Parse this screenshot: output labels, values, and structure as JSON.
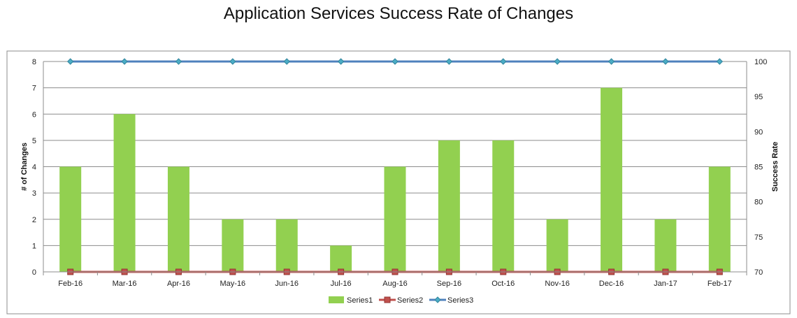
{
  "chart_data": {
    "type": "bar",
    "title": "Application Services Success Rate of Changes",
    "categories": [
      "Feb-16",
      "Mar-16",
      "Apr-16",
      "May-16",
      "Jun-16",
      "Jul-16",
      "Aug-16",
      "Sep-16",
      "Oct-16",
      "Nov-16",
      "Dec-16",
      "Jan-17",
      "Feb-17"
    ],
    "series": [
      {
        "name": "Series1",
        "type": "bar",
        "axis": "left",
        "color": "#92d050",
        "values": [
          4,
          6,
          4,
          2,
          2,
          1,
          4,
          5,
          5,
          2,
          7,
          2,
          4
        ]
      },
      {
        "name": "Series2",
        "type": "line",
        "axis": "left",
        "color": "#c0504d",
        "values": [
          0,
          0,
          0,
          0,
          0,
          0,
          0,
          0,
          0,
          0,
          0,
          0,
          0
        ]
      },
      {
        "name": "Series3",
        "type": "line",
        "axis": "right",
        "color": "#4f81bd",
        "values": [
          100,
          100,
          100,
          100,
          100,
          100,
          100,
          100,
          100,
          100,
          100,
          100,
          100
        ]
      }
    ],
    "ylabel": "# of Changes",
    "ylim": [
      0,
      8
    ],
    "yticks": [
      "0",
      "1",
      "2",
      "3",
      "4",
      "5",
      "6",
      "7",
      "8"
    ],
    "y2label": "Success Rate",
    "y2lim": [
      70,
      100
    ],
    "y2ticks": [
      "70",
      "75",
      "80",
      "85",
      "90",
      "95",
      "100"
    ],
    "grid": true,
    "legend_position": "bottom"
  }
}
